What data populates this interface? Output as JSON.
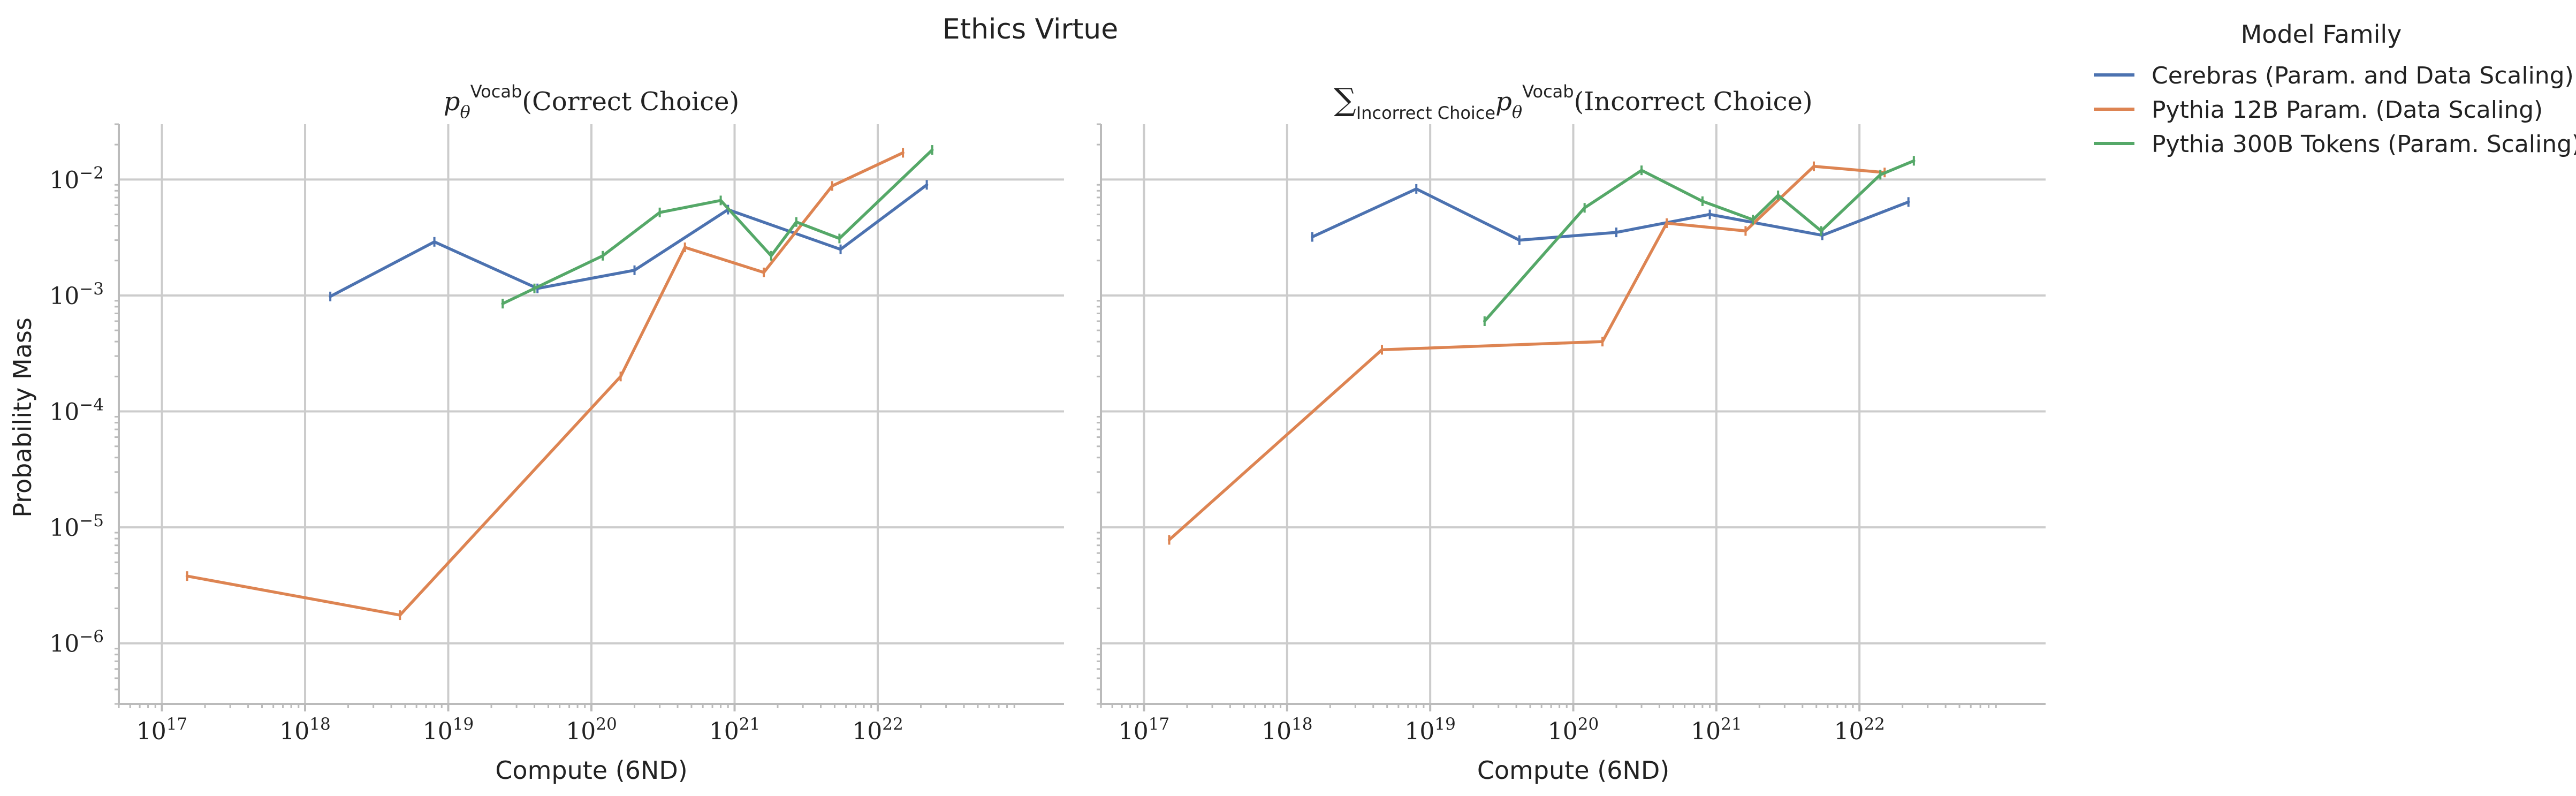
{
  "suptitle": "Ethics Virtue",
  "ylabel": "Probability Mass",
  "legend": {
    "title": "Model Family",
    "entries": [
      {
        "label": "Cerebras (Param. and Data Scaling)",
        "color": "#4c72b0"
      },
      {
        "label": "Pythia 12B Param. (Data Scaling)",
        "color": "#dd8452"
      },
      {
        "label": "Pythia 300B Tokens (Param. Scaling)",
        "color": "#55a868"
      }
    ]
  },
  "chart_data": [
    {
      "type": "line",
      "title_parts": {
        "prefix": "",
        "subscript": "",
        "p": "p",
        "theta": "θ",
        "superscript": "Vocab",
        "tail": "(Correct Choice)"
      },
      "xlabel": "Compute (6ND)",
      "x_scale": "log",
      "y_scale": "log",
      "xlim": [
        5e+16,
        2e+23
      ],
      "ylim": [
        3e-07,
        0.03
      ],
      "x_ticks": [
        {
          "base": "10",
          "exp": "17",
          "value": 1e+17
        },
        {
          "base": "10",
          "exp": "18",
          "value": 1e+18
        },
        {
          "base": "10",
          "exp": "19",
          "value": 1e+19
        },
        {
          "base": "10",
          "exp": "20",
          "value": 1e+20
        },
        {
          "base": "10",
          "exp": "21",
          "value": 1e+21
        },
        {
          "base": "10",
          "exp": "22",
          "value": 1e+22
        }
      ],
      "y_ticks": [
        {
          "base": "10",
          "exp": "−6",
          "value": 1e-06
        },
        {
          "base": "10",
          "exp": "−5",
          "value": 1e-05
        },
        {
          "base": "10",
          "exp": "−4",
          "value": 0.0001
        },
        {
          "base": "10",
          "exp": "−3",
          "value": 0.001
        },
        {
          "base": "10",
          "exp": "−2",
          "value": 0.01
        }
      ],
      "grid": true,
      "series": [
        {
          "name": "Cerebras (Param. and Data Scaling)",
          "color": "#4c72b0",
          "x": [
            1.5e+18,
            8e+18,
            4.2e+19,
            2e+20,
            9e+20,
            5.5e+21,
            2.2e+22
          ],
          "y": [
            0.00098,
            0.0029,
            0.00115,
            0.00165,
            0.0055,
            0.0025,
            0.009
          ]
        },
        {
          "name": "Pythia 12B Param. (Data Scaling)",
          "color": "#dd8452",
          "x": [
            1.5e+17,
            4.6e+18,
            1.6e+20,
            4.5e+20,
            1.6e+21,
            4.8e+21,
            1.5e+22
          ],
          "y": [
            3.8e-06,
            1.75e-06,
            0.0002,
            0.0026,
            0.00158,
            0.0088,
            0.017
          ]
        },
        {
          "name": "Pythia 300B Tokens (Param. Scaling)",
          "color": "#55a868",
          "x": [
            2.4e+19,
            4e+19,
            1.2e+20,
            3e+20,
            8e+20,
            1.8e+21,
            2.7e+21,
            5.4e+21,
            2.4e+22
          ],
          "y": [
            0.00085,
            0.00115,
            0.0022,
            0.0052,
            0.0066,
            0.0022,
            0.0043,
            0.0031,
            0.018
          ]
        }
      ]
    },
    {
      "type": "line",
      "title_parts": {
        "prefix": "∑",
        "subscript": "Incorrect Choice",
        "p": "p",
        "theta": "θ",
        "superscript": "Vocab",
        "tail": "(Incorrect Choice)"
      },
      "xlabel": "Compute (6ND)",
      "x_scale": "log",
      "y_scale": "log",
      "xlim": [
        5e+16,
        2e+23
      ],
      "ylim": [
        3e-07,
        0.03
      ],
      "x_ticks": [
        {
          "base": "10",
          "exp": "17",
          "value": 1e+17
        },
        {
          "base": "10",
          "exp": "18",
          "value": 1e+18
        },
        {
          "base": "10",
          "exp": "19",
          "value": 1e+19
        },
        {
          "base": "10",
          "exp": "20",
          "value": 1e+20
        },
        {
          "base": "10",
          "exp": "21",
          "value": 1e+21
        },
        {
          "base": "10",
          "exp": "22",
          "value": 1e+22
        }
      ],
      "y_ticks": [
        {
          "base": "10",
          "exp": "−6",
          "value": 1e-06
        },
        {
          "base": "10",
          "exp": "−5",
          "value": 1e-05
        },
        {
          "base": "10",
          "exp": "−4",
          "value": 0.0001
        },
        {
          "base": "10",
          "exp": "−3",
          "value": 0.001
        },
        {
          "base": "10",
          "exp": "−2",
          "value": 0.01
        }
      ],
      "grid": true,
      "series": [
        {
          "name": "Cerebras (Param. and Data Scaling)",
          "color": "#4c72b0",
          "x": [
            1.5e+18,
            8e+18,
            4.2e+19,
            2e+20,
            9e+20,
            5.5e+21,
            2.2e+22
          ],
          "y": [
            0.0032,
            0.0083,
            0.003,
            0.0035,
            0.005,
            0.0033,
            0.0064
          ]
        },
        {
          "name": "Pythia 12B Param. (Data Scaling)",
          "color": "#dd8452",
          "x": [
            1.5e+17,
            4.6e+18,
            1.6e+20,
            4.5e+20,
            1.6e+21,
            4.8e+21,
            1.5e+22
          ],
          "y": [
            7.8e-06,
            0.00034,
            0.0004,
            0.0042,
            0.0036,
            0.013,
            0.0115
          ]
        },
        {
          "name": "Pythia 300B Tokens (Param. Scaling)",
          "color": "#55a868",
          "x": [
            2.4e+19,
            1.2e+20,
            3e+20,
            8e+20,
            1.8e+21,
            2.7e+21,
            5.4e+21,
            1.4e+22,
            2.4e+22
          ],
          "y": [
            0.0006,
            0.0057,
            0.012,
            0.0065,
            0.0045,
            0.0073,
            0.0036,
            0.011,
            0.0145
          ]
        }
      ]
    }
  ]
}
